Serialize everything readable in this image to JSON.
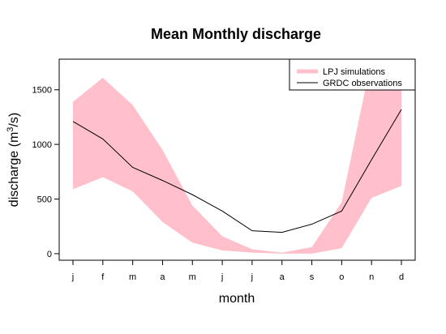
{
  "chart_data": {
    "type": "area",
    "title": "Mean Monthly discharge",
    "xlabel": "month",
    "ylabel": "discharge (m",
    "ylabel_sup": "3",
    "ylabel_end": "/s)",
    "categories": [
      "j",
      "f",
      "m",
      "a",
      "m",
      "j",
      "j",
      "a",
      "s",
      "o",
      "n",
      "d"
    ],
    "yticks": [
      0,
      500,
      1000,
      1500
    ],
    "ylim": [
      -60,
      1780
    ],
    "series": [
      {
        "name": "LPJ simulations",
        "kind": "band",
        "color": "#ffc0cb",
        "lower": [
          590,
          700,
          570,
          290,
          100,
          30,
          10,
          0,
          0,
          50,
          510,
          620
        ],
        "upper": [
          1390,
          1610,
          1360,
          950,
          440,
          160,
          40,
          10,
          60,
          470,
          1780,
          1780
        ]
      },
      {
        "name": "GRDC observations",
        "kind": "line",
        "color": "#000000",
        "values": [
          1210,
          1050,
          790,
          670,
          540,
          390,
          210,
          195,
          270,
          390,
          860,
          1320
        ]
      }
    ],
    "legend_position": "top-right",
    "grid": false
  }
}
